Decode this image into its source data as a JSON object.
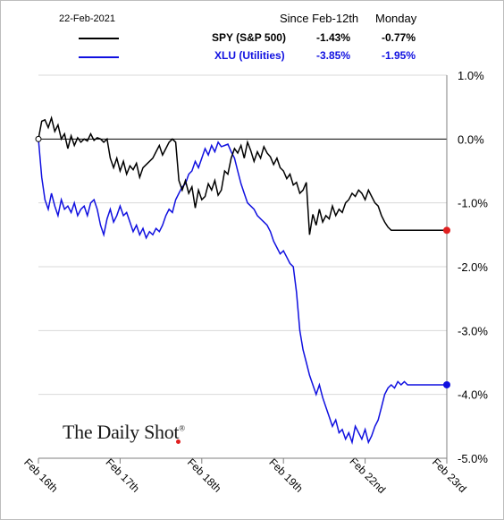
{
  "header": {
    "date": "22-Feb-2021",
    "col1": "Since Feb-12th",
    "col2": "Monday"
  },
  "legend": [
    {
      "name": "SPY (S&P 500)",
      "since": "-1.43%",
      "monday": "-0.77%",
      "color": "#000000"
    },
    {
      "name": "XLU (Utilities)",
      "since": "-3.85%",
      "monday": "-1.95%",
      "color": "#1010e0"
    }
  ],
  "logo": {
    "text": "The Daily Shot",
    "mark": "®"
  },
  "chart_data": {
    "type": "line",
    "title": "",
    "xlabel": "",
    "ylabel": "",
    "x_ticks": [
      "Feb 16th",
      "Feb 17th",
      "Feb 18th",
      "Feb 19th",
      "Feb 22nd",
      "Feb 23rd"
    ],
    "y_ticks": [
      "1.0%",
      "0.0%",
      "-1.0%",
      "-2.0%",
      "-3.0%",
      "-4.0%",
      "-5.0%"
    ],
    "ylim": [
      -5.0,
      1.0
    ],
    "xlim": [
      0,
      5
    ],
    "grid": "horizontal",
    "legend_position": "top",
    "series": [
      {
        "name": "SPY (S&P 500)",
        "color": "#000000",
        "x": [
          0,
          0.04,
          0.08,
          0.12,
          0.16,
          0.2,
          0.24,
          0.28,
          0.32,
          0.36,
          0.4,
          0.44,
          0.48,
          0.52,
          0.56,
          0.6,
          0.64,
          0.68,
          0.72,
          0.76,
          0.8,
          0.84,
          0.88,
          0.92,
          0.96,
          1.0,
          1.04,
          1.08,
          1.12,
          1.16,
          1.2,
          1.24,
          1.28,
          1.32,
          1.36,
          1.4,
          1.44,
          1.48,
          1.52,
          1.56,
          1.6,
          1.64,
          1.68,
          1.72,
          1.76,
          1.8,
          1.84,
          1.88,
          1.92,
          1.96,
          2.0,
          2.04,
          2.08,
          2.12,
          2.16,
          2.2,
          2.24,
          2.28,
          2.32,
          2.36,
          2.4,
          2.44,
          2.48,
          2.52,
          2.56,
          2.6,
          2.64,
          2.68,
          2.72,
          2.76,
          2.8,
          2.84,
          2.88,
          2.92,
          2.96,
          3.0,
          3.04,
          3.08,
          3.12,
          3.16,
          3.2,
          3.24,
          3.28,
          3.32,
          3.36,
          3.4,
          3.44,
          3.48,
          3.52,
          3.56,
          3.6,
          3.64,
          3.68,
          3.72,
          3.76,
          3.8,
          3.84,
          3.88,
          3.92,
          3.96,
          4.0,
          4.04,
          4.08,
          4.12,
          4.16,
          4.2,
          4.24,
          4.28,
          4.32,
          4.36,
          4.4,
          4.44,
          4.48,
          4.52,
          4.56,
          4.6,
          4.64,
          4.68,
          4.72,
          4.76,
          4.8,
          4.84,
          4.88,
          4.92,
          4.96,
          5.0
        ],
        "values": [
          0.0,
          0.28,
          0.3,
          0.18,
          0.33,
          0.12,
          0.22,
          0.0,
          0.08,
          -0.15,
          0.05,
          -0.1,
          0.02,
          -0.05,
          0.0,
          -0.03,
          0.08,
          -0.02,
          0.02,
          0.0,
          -0.05,
          0.0,
          -0.3,
          -0.45,
          -0.3,
          -0.5,
          -0.35,
          -0.55,
          -0.42,
          -0.48,
          -0.38,
          -0.6,
          -0.45,
          -0.4,
          -0.35,
          -0.3,
          -0.2,
          -0.1,
          -0.25,
          -0.15,
          -0.05,
          0.0,
          -0.05,
          -0.65,
          -0.8,
          -0.65,
          -0.85,
          -0.75,
          -1.08,
          -0.8,
          -0.95,
          -0.9,
          -0.7,
          -0.8,
          -0.65,
          -0.88,
          -0.8,
          -0.5,
          -0.55,
          -0.3,
          -0.15,
          -0.22,
          -0.1,
          -0.3,
          -0.05,
          -0.18,
          -0.35,
          -0.2,
          -0.3,
          -0.12,
          -0.22,
          -0.28,
          -0.4,
          -0.3,
          -0.45,
          -0.5,
          -0.62,
          -0.55,
          -0.72,
          -0.68,
          -0.85,
          -0.8,
          -0.68,
          -1.5,
          -1.18,
          -1.35,
          -1.1,
          -1.3,
          -1.2,
          -1.25,
          -1.05,
          -1.2,
          -1.1,
          -1.15,
          -1.0,
          -0.95,
          -0.85,
          -0.9,
          -0.8,
          -0.85,
          -0.95,
          -0.8,
          -0.9,
          -1.0,
          -1.05,
          -1.2,
          -1.3,
          -1.38,
          -1.43,
          -1.43,
          -1.43,
          -1.43,
          -1.43,
          -1.43,
          -1.43,
          -1.43,
          -1.43,
          -1.43,
          -1.43,
          -1.43,
          -1.43,
          -1.43,
          -1.43,
          -1.43,
          -1.43,
          -1.43
        ],
        "end_value": -1.43
      },
      {
        "name": "XLU (Utilities)",
        "color": "#1010e0",
        "x": [
          0,
          0.04,
          0.08,
          0.12,
          0.16,
          0.2,
          0.24,
          0.28,
          0.32,
          0.36,
          0.4,
          0.44,
          0.48,
          0.52,
          0.56,
          0.6,
          0.64,
          0.68,
          0.72,
          0.76,
          0.8,
          0.84,
          0.88,
          0.92,
          0.96,
          1.0,
          1.04,
          1.08,
          1.12,
          1.16,
          1.2,
          1.24,
          1.28,
          1.32,
          1.36,
          1.4,
          1.44,
          1.48,
          1.52,
          1.56,
          1.6,
          1.64,
          1.68,
          1.72,
          1.76,
          1.8,
          1.84,
          1.88,
          1.92,
          1.96,
          2.0,
          2.04,
          2.08,
          2.12,
          2.16,
          2.2,
          2.24,
          2.28,
          2.32,
          2.36,
          2.4,
          2.44,
          2.48,
          2.52,
          2.56,
          2.6,
          2.64,
          2.68,
          2.72,
          2.76,
          2.8,
          2.84,
          2.88,
          2.92,
          2.96,
          3.0,
          3.04,
          3.08,
          3.12,
          3.16,
          3.2,
          3.24,
          3.28,
          3.32,
          3.36,
          3.4,
          3.44,
          3.48,
          3.52,
          3.56,
          3.6,
          3.64,
          3.68,
          3.72,
          3.76,
          3.8,
          3.84,
          3.88,
          3.92,
          3.96,
          4.0,
          4.04,
          4.08,
          4.12,
          4.16,
          4.2,
          4.24,
          4.28,
          4.32,
          4.36,
          4.4,
          4.44,
          4.48,
          4.52,
          4.56,
          4.6,
          4.64,
          4.68,
          4.72,
          4.76,
          4.8,
          4.84,
          4.88,
          4.92,
          4.96,
          5.0
        ],
        "values": [
          0.0,
          -0.6,
          -0.95,
          -1.1,
          -0.85,
          -1.05,
          -1.2,
          -0.95,
          -1.1,
          -1.05,
          -1.15,
          -1.0,
          -1.2,
          -1.1,
          -1.05,
          -1.2,
          -1.0,
          -0.95,
          -1.1,
          -1.35,
          -1.5,
          -1.25,
          -1.1,
          -1.3,
          -1.2,
          -1.05,
          -1.2,
          -1.15,
          -1.3,
          -1.45,
          -1.35,
          -1.5,
          -1.4,
          -1.55,
          -1.45,
          -1.5,
          -1.4,
          -1.45,
          -1.35,
          -1.2,
          -1.1,
          -1.15,
          -0.95,
          -0.85,
          -0.75,
          -0.7,
          -0.55,
          -0.5,
          -0.35,
          -0.45,
          -0.3,
          -0.15,
          -0.25,
          -0.1,
          -0.2,
          -0.05,
          -0.12,
          -0.1,
          -0.08,
          -0.2,
          -0.3,
          -0.5,
          -0.7,
          -0.85,
          -1.0,
          -1.05,
          -1.1,
          -1.2,
          -1.25,
          -1.3,
          -1.35,
          -1.45,
          -1.6,
          -1.7,
          -1.8,
          -1.75,
          -1.85,
          -1.95,
          -2.0,
          -2.4,
          -3.0,
          -3.3,
          -3.5,
          -3.7,
          -3.85,
          -4.0,
          -3.85,
          -4.05,
          -4.2,
          -4.35,
          -4.5,
          -4.4,
          -4.6,
          -4.55,
          -4.7,
          -4.6,
          -4.75,
          -4.5,
          -4.6,
          -4.7,
          -4.55,
          -4.75,
          -4.65,
          -4.5,
          -4.4,
          -4.2,
          -4.0,
          -3.9,
          -3.85,
          -3.9,
          -3.8,
          -3.85,
          -3.8,
          -3.85,
          -3.85,
          -3.85,
          -3.85,
          -3.85,
          -3.85,
          -3.85,
          -3.85,
          -3.85,
          -3.85,
          -3.85,
          -3.85,
          -3.85
        ],
        "end_value": -3.85
      }
    ]
  }
}
